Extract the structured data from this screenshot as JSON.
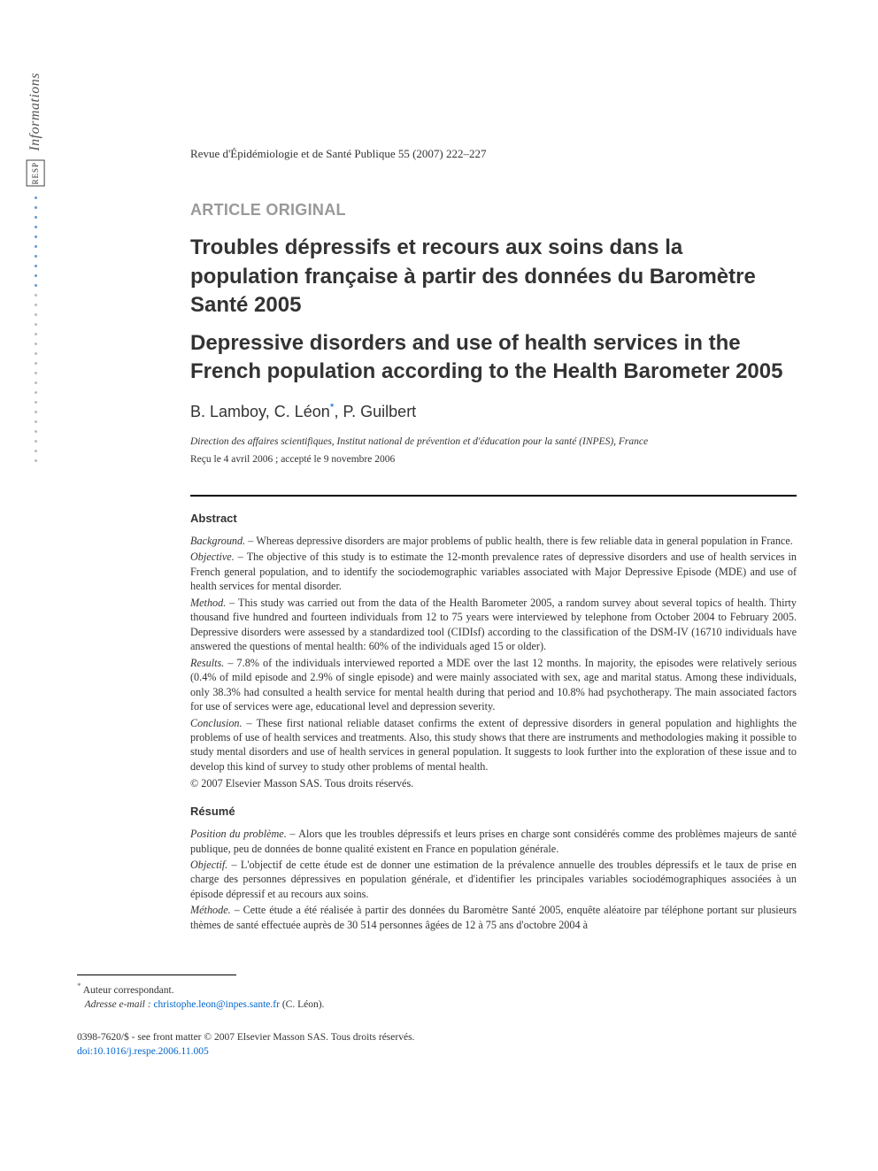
{
  "sidebar": {
    "label": "Informations",
    "badge": "RESP",
    "dots": [
      "blue",
      "blue",
      "blue",
      "blue",
      "blue",
      "blue",
      "blue",
      "blue",
      "blue",
      "blue",
      "gray",
      "gray",
      "gray",
      "gray",
      "gray",
      "gray",
      "gray",
      "gray",
      "gray",
      "gray",
      "gray",
      "gray",
      "gray",
      "gray",
      "gray",
      "gray",
      "gray",
      "gray"
    ]
  },
  "journal": "Revue d'Épidémiologie et de Santé Publique 55 (2007) 222–227",
  "articleType": "ARTICLE ORIGINAL",
  "titleFr": "Troubles dépressifs et recours aux soins dans la population française à partir des données du Baromètre Santé 2005",
  "titleEn": "Depressive disorders and use of health services in the French population according to the Health Barometer 2005",
  "authors": {
    "a1": "B. Lamboy",
    "a2": "C. Léon",
    "a3": "P. Guilbert"
  },
  "affiliation": "Direction des affaires scientifiques, Institut national de prévention et d'éducation pour la santé (INPES), France",
  "dates": "Reçu le 4 avril 2006 ; accepté le 9 novembre 2006",
  "abstract": {
    "heading": "Abstract",
    "background": "Whereas depressive disorders are major problems of public health, there is few reliable data in general population in France.",
    "objective": "The objective of this study is to estimate the 12-month prevalence rates of depressive disorders and use of health services in French general population, and to identify the sociodemographic variables associated with Major Depressive Episode (MDE) and use of health services for mental disorder.",
    "method": "This study was carried out from the data of the Health Barometer 2005, a random survey about several topics of health. Thirty thousand five hundred and fourteen individuals from 12 to 75 years were interviewed by telephone from October 2004 to February 2005. Depressive disorders were assessed by a standardized tool (CIDIsf) according to the classification of the DSM-IV (16710 individuals have answered the questions of mental health: 60% of the individuals aged 15 or older).",
    "results": "7.8% of the individuals interviewed reported a MDE over the last 12 months. In majority, the episodes were relatively serious (0.4% of mild episode and 2.9% of single episode) and were mainly associated with sex, age and marital status. Among these individuals, only 38.3% had consulted a health service for mental health during that period and 10.8% had psychotherapy. The main associated factors for use of services were age, educational level and depression severity.",
    "conclusion": "These first national reliable dataset confirms the extent of depressive disorders in general population and highlights the problems of use of health services and treatments. Also, this study shows that there are instruments and methodologies making it possible to study mental disorders and use of health services in general population. It suggests to look further into the exploration of these issue and to develop this kind of survey to study other problems of mental health.",
    "copyright": "© 2007 Elsevier Masson SAS. Tous droits réservés."
  },
  "labels": {
    "background": "Background. – ",
    "objective": "Objective. – ",
    "method": "Method. – ",
    "results": "Results. – ",
    "conclusion": "Conclusion. – ",
    "position": "Position du problème. – ",
    "objectif": "Objectif. – ",
    "methode": "Méthode. – "
  },
  "resume": {
    "heading": "Résumé",
    "position": "Alors que les troubles dépressifs et leurs prises en charge sont considérés comme des problèmes majeurs de santé publique, peu de données de bonne qualité existent en France en population générale.",
    "objectif": "L'objectif de cette étude est de donner une estimation de la prévalence annuelle des troubles dépressifs et le taux de prise en charge des personnes dépressives en population générale, et d'identifier les principales variables sociodémographiques associées à un épisode dépressif et au recours aux soins.",
    "methode": "Cette étude a été réalisée à partir des données du Baromètre Santé 2005, enquête aléatoire par téléphone portant sur plusieurs thèmes de santé effectuée auprès de 30 514 personnes âgées de 12 à 75 ans d'octobre 2004 à"
  },
  "footnote": {
    "corresp": "Auteur correspondant.",
    "emailLabel": "Adresse e-mail : ",
    "email": "christophe.leon@inpes.sante.fr",
    "emailAuthor": " (C. Léon)."
  },
  "footer": {
    "line1": "0398-7620/$ - see front matter © 2007 Elsevier Masson SAS. Tous droits réservés.",
    "doi": "doi:10.1016/j.respe.2006.11.005"
  }
}
